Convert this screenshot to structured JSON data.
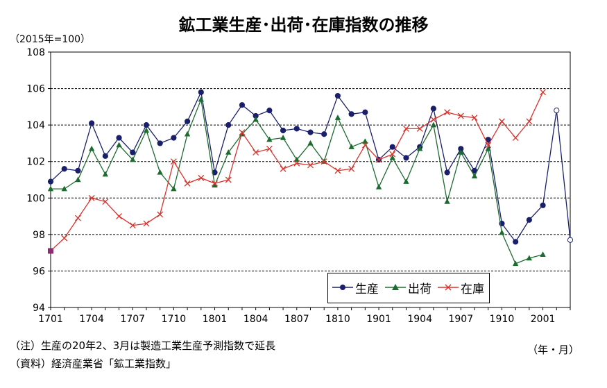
{
  "title": "鉱工業生産･出荷･在庫指数の推移",
  "unit": "（2015年=100）",
  "xunit": "（年・月）",
  "notes": {
    "note1": "（注）生産の20年2、3月は製造工業生産予測指数で延長",
    "note2": "（資料）経済産業省「鉱工業指数」"
  },
  "legend": [
    "生産",
    "出荷",
    "在庫"
  ],
  "colors": {
    "production": "#1a1f6b",
    "shipment": "#1c6b2f",
    "inventory": "#d9332c",
    "axis": "#000000",
    "grid": "#000000"
  },
  "chart_data": {
    "type": "line",
    "title": "鉱工業生産･出荷･在庫指数の推移",
    "ylabel": "（2015年=100）",
    "xlabel": "（年・月）",
    "ylim": [
      94,
      108
    ],
    "yticks": [
      94,
      96,
      98,
      100,
      102,
      104,
      106,
      108
    ],
    "x": [
      "1701",
      "1702",
      "1703",
      "1704",
      "1705",
      "1706",
      "1707",
      "1708",
      "1709",
      "1710",
      "1711",
      "1712",
      "1801",
      "1802",
      "1803",
      "1804",
      "1805",
      "1806",
      "1807",
      "1808",
      "1809",
      "1810",
      "1811",
      "1812",
      "1901",
      "1902",
      "1903",
      "1904",
      "1905",
      "1906",
      "1907",
      "1908",
      "1909",
      "1910",
      "1911",
      "1912",
      "2001",
      "2002",
      "2003"
    ],
    "xtick_labels": [
      "1701",
      "1704",
      "1707",
      "1710",
      "1801",
      "1804",
      "1807",
      "1810",
      "1901",
      "1904",
      "1907",
      "1910",
      "2001"
    ],
    "grid": true,
    "legend_position": "bottom-right",
    "series": [
      {
        "name": "生産",
        "marker": "circle",
        "values": [
          100.9,
          101.6,
          101.5,
          104.1,
          102.3,
          103.3,
          102.5,
          104.0,
          103.0,
          103.3,
          104.2,
          105.8,
          101.4,
          104.0,
          105.1,
          104.5,
          104.8,
          103.7,
          103.8,
          103.6,
          103.5,
          105.6,
          104.6,
          104.7,
          102.1,
          102.8,
          102.2,
          102.8,
          104.9,
          101.4,
          102.7,
          101.5,
          103.2,
          98.6,
          97.6,
          98.8,
          99.6,
          104.8,
          97.7
        ],
        "forecast_points": [
          "2002",
          "2003"
        ]
      },
      {
        "name": "出荷",
        "marker": "triangle",
        "values": [
          100.5,
          100.5,
          101.0,
          102.7,
          101.3,
          102.9,
          102.1,
          103.7,
          101.4,
          100.5,
          103.5,
          105.4,
          100.7,
          102.5,
          103.5,
          104.3,
          103.2,
          103.3,
          102.1,
          103.0,
          102.0,
          104.4,
          102.8,
          103.1,
          100.6,
          102.2,
          100.9,
          102.7,
          104.0,
          99.8,
          102.5,
          101.2,
          102.7,
          98.1,
          96.4,
          96.7,
          96.9,
          null,
          null
        ]
      },
      {
        "name": "在庫",
        "marker": "x",
        "values": [
          97.1,
          97.8,
          98.9,
          100.0,
          99.8,
          99.0,
          98.5,
          98.6,
          99.1,
          102.0,
          100.8,
          101.1,
          100.8,
          101.0,
          103.6,
          102.5,
          102.7,
          101.6,
          101.9,
          101.8,
          102.0,
          101.5,
          101.6,
          102.9,
          102.1,
          102.4,
          103.8,
          103.8,
          104.3,
          104.7,
          104.5,
          104.4,
          102.9,
          104.2,
          103.3,
          104.2,
          105.8,
          null,
          null
        ]
      }
    ]
  }
}
